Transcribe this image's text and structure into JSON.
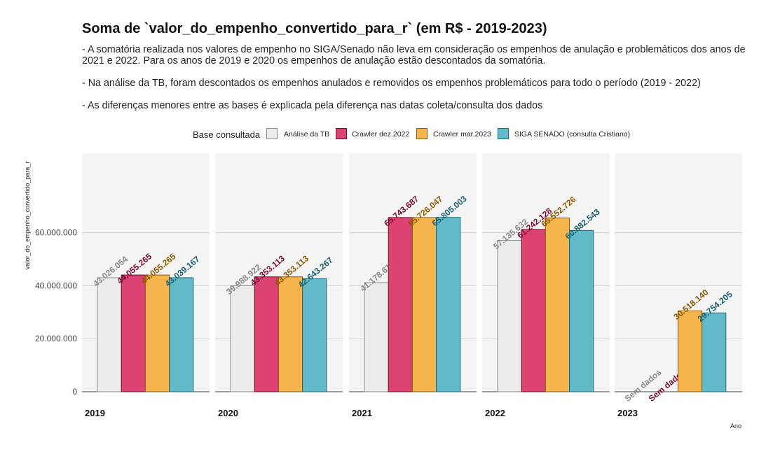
{
  "title": "Soma de `valor_do_empenho_convertido_para_r` (em R$ - 2019-2023)",
  "subtitle_lines": [
    "- A somatória realizada nos valores de empenho no SIGA/Senado não leva em consideração os empenhos de anulação e problemáticos dos anos de 2021 e 2022. Para os anos de 2019 e 2020 os empenhos de anulação estão descontados da somatória.",
    "- Na análise da TB, foram descontados os empenhos anulados e removidos os empenhos problemáticos para todo o período (2019 - 2022)",
    "- As diferenças menores entre as bases é explicada pela diferença nas datas coleta/consulta dos dados"
  ],
  "legend": {
    "title": "Base consultada",
    "items": [
      {
        "label": "Análise da TB",
        "fill": "#ececec",
        "stroke": "#8a8a8a",
        "text": "#8a8a8a"
      },
      {
        "label": "Crawler dez.2022",
        "fill": "#dc4272",
        "stroke": "#70102c",
        "text": "#7a0b33"
      },
      {
        "label": "Crawler mar.2023",
        "fill": "#f6b44c",
        "stroke": "#8a5d10",
        "text": "#8a5a00"
      },
      {
        "label": "SIGA SENADO (consulta Cristiano)",
        "fill": "#62b9c8",
        "stroke": "#1e6b78",
        "text": "#1b5f6b"
      }
    ]
  },
  "chart_data": {
    "type": "bar",
    "title": "Soma de `valor_do_empenho_convertido_para_r` (em R$ - 2019-2023)",
    "xlabel": "Ano",
    "ylabel": "valor_do_empenho_convertido_para_r",
    "ylim": [
      0,
      90000000
    ],
    "yticks": [
      0,
      20000000,
      40000000,
      60000000
    ],
    "ytick_labels": [
      "0",
      "20.000.000",
      "40.000.000",
      "60.000.000"
    ],
    "facets": [
      "2019",
      "2020",
      "2021",
      "2022",
      "2023"
    ],
    "grid": true,
    "legend_position": "top",
    "series": [
      {
        "name": "Análise da TB",
        "values": [
          43026054,
          39988922,
          41178615,
          57135632,
          null
        ],
        "labels": [
          "43.026.054",
          "39.988.922",
          "41.178.615",
          "57.135.632",
          "Sem dados"
        ]
      },
      {
        "name": "Crawler dez.2022",
        "values": [
          44055265,
          43353113,
          65743687,
          61242128,
          null
        ],
        "labels": [
          "44.055.265",
          "43.353.113",
          "65.743.687",
          "61.242.128",
          "Sem dados"
        ]
      },
      {
        "name": "Crawler mar.2023",
        "values": [
          44055265,
          43353113,
          65726047,
          65552726,
          30518140
        ],
        "labels": [
          "44.055.265",
          "43.353.113",
          "65.726.047",
          "65.552.726",
          "30.518.140"
        ]
      },
      {
        "name": "SIGA SENADO (consulta Cristiano)",
        "values": [
          43039167,
          42643267,
          65805003,
          60882543,
          29754205
        ],
        "labels": [
          "43.039.167",
          "42.643.267",
          "65.805.003",
          "60.882.543",
          "29.754.205"
        ]
      }
    ]
  }
}
